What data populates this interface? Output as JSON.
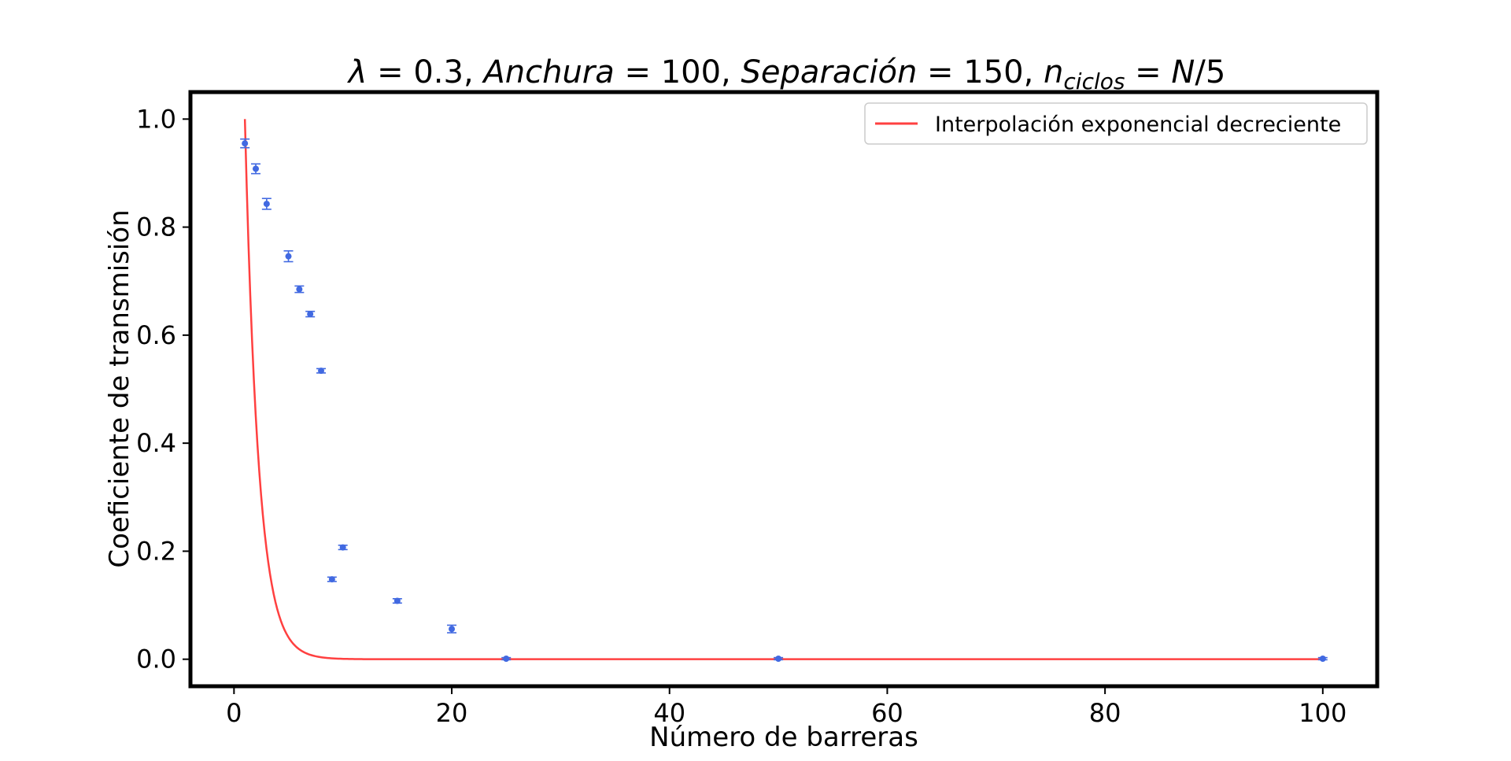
{
  "chart_data": {
    "type": "scatter",
    "title_parts": [
      "λ",
      " = 0.3, ",
      "Anchura",
      " = 100, ",
      "Separación",
      " = 150, ",
      "n",
      "ciclos",
      " = ",
      "N",
      "/5"
    ],
    "xlabel": "Número de barreras",
    "ylabel": "Coeficiente de transmisión",
    "xlim": [
      -4,
      105
    ],
    "ylim": [
      -0.05,
      1.05
    ],
    "x_ticks": [
      0,
      20,
      40,
      60,
      80,
      100
    ],
    "x_tick_labels": [
      "0",
      "20",
      "40",
      "60",
      "80",
      "100"
    ],
    "y_ticks": [
      0.0,
      0.2,
      0.4,
      0.6,
      0.8,
      1.0
    ],
    "y_tick_labels": [
      "0.0",
      "0.2",
      "0.4",
      "0.6",
      "0.8",
      "1.0"
    ],
    "grid": false,
    "legend_position": "top-right",
    "series": [
      {
        "name": "",
        "kind": "errorbar",
        "color": "#4169e1",
        "points": [
          {
            "x": 1,
            "y": 0.955,
            "err": 0.008
          },
          {
            "x": 2,
            "y": 0.908,
            "err": 0.009
          },
          {
            "x": 3,
            "y": 0.843,
            "err": 0.01
          },
          {
            "x": 5,
            "y": 0.746,
            "err": 0.01
          },
          {
            "x": 6,
            "y": 0.685,
            "err": 0.006
          },
          {
            "x": 7,
            "y": 0.639,
            "err": 0.005
          },
          {
            "x": 8,
            "y": 0.534,
            "err": 0.004
          },
          {
            "x": 9,
            "y": 0.148,
            "err": 0.004
          },
          {
            "x": 10,
            "y": 0.207,
            "err": 0.004
          },
          {
            "x": 15,
            "y": 0.108,
            "err": 0.004
          },
          {
            "x": 20,
            "y": 0.056,
            "err": 0.007
          },
          {
            "x": 25,
            "y": 0.001,
            "err": 0.002
          },
          {
            "x": 50,
            "y": 0.001,
            "err": 0.002
          },
          {
            "x": 100,
            "y": 0.001,
            "err": 0.002
          }
        ]
      },
      {
        "name": "Interpolación exponencial decreciente",
        "kind": "line",
        "color": "#ff4040",
        "function": "exponential_decay",
        "x_start": 1,
        "x_end": 100,
        "y_at_start": 1.0,
        "decay_rate": 0.8
      }
    ]
  }
}
